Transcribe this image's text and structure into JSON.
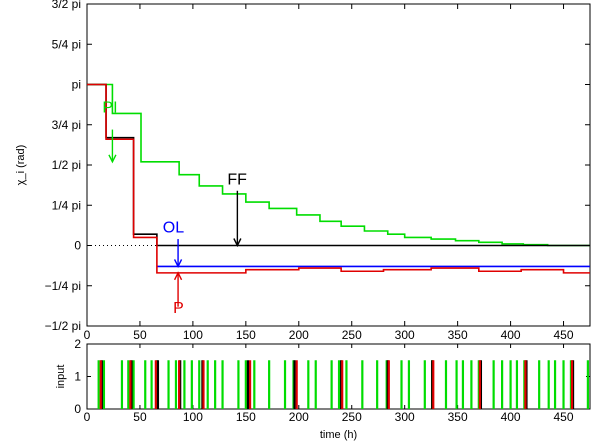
{
  "chart_data": [
    {
      "type": "line",
      "ylabel": "χ_i (rad)",
      "xlim": [
        0,
        475
      ],
      "ylim": [
        -0.5,
        1.5
      ],
      "y_unit": "pi rad",
      "y_ticks": [
        -0.5,
        -0.25,
        0,
        0.25,
        0.5,
        0.75,
        1.0,
        1.25,
        1.5
      ],
      "y_ticklabels": [
        "−1/2 pi",
        "−1/4 pi",
        "0",
        "1/4 pi",
        "1/2 pi",
        "3/4 pi",
        "pi",
        "5/4 pi",
        "3/2 pi"
      ],
      "x_ticks": [
        0,
        50,
        100,
        150,
        200,
        250,
        300,
        350,
        400,
        450
      ],
      "x_ticklabels": [
        "0",
        "50",
        "100",
        "150",
        "200",
        "250",
        "300",
        "350",
        "400",
        "450"
      ],
      "grid": false,
      "series": [
        {
          "name": "PI",
          "color": "#00dd00",
          "step": true,
          "x": [
            0,
            12,
            24,
            41,
            51,
            65,
            87,
            106,
            128,
            150,
            172,
            198,
            220,
            240,
            262,
            284,
            300,
            325,
            348,
            370,
            392,
            412,
            435,
            475
          ],
          "y": [
            1.0,
            1.0,
            0.82,
            0.82,
            0.52,
            0.52,
            0.44,
            0.37,
            0.32,
            0.27,
            0.23,
            0.19,
            0.15,
            0.12,
            0.09,
            0.07,
            0.05,
            0.04,
            0.03,
            0.02,
            0.01,
            0.005,
            0.0,
            0.0
          ]
        },
        {
          "name": "FF",
          "color": "#000000",
          "step": true,
          "x": [
            0,
            12,
            18,
            40,
            44,
            65,
            66,
            475
          ],
          "y": [
            1.0,
            1.0,
            0.67,
            0.67,
            0.07,
            0.07,
            0.0,
            0.0
          ]
        },
        {
          "name": "OL",
          "color": "#0000ff",
          "step": true,
          "x": [
            66,
            475
          ],
          "y": [
            -0.13,
            -0.13
          ],
          "pre_segment": {
            "x": [
              0,
              66
            ],
            "y": [
              0,
              0
            ],
            "style": "dotted",
            "color": "#000000"
          }
        },
        {
          "name": "P",
          "color": "#e00000",
          "step": true,
          "x": [
            0,
            12,
            18,
            40,
            44,
            65,
            66,
            150,
            200,
            240,
            280,
            325,
            370,
            410,
            450,
            475
          ],
          "y": [
            1.0,
            1.0,
            0.66,
            0.66,
            0.05,
            0.05,
            -0.17,
            -0.15,
            -0.14,
            -0.16,
            -0.15,
            -0.14,
            -0.16,
            -0.15,
            -0.17,
            -0.17
          ]
        }
      ],
      "annotations": [
        {
          "text": "PI",
          "color": "#00dd00",
          "x": 24,
          "y": 0.8
        },
        {
          "text": "FF",
          "color": "#000000",
          "x": 142,
          "y": 0.38
        },
        {
          "text": "OL",
          "color": "#0000ff",
          "x": 81,
          "y": 0.08
        },
        {
          "text": "P",
          "color": "#e00000",
          "x": 86,
          "y": -0.42
        }
      ]
    },
    {
      "type": "bar",
      "xlabel": "time (h)",
      "ylabel": "input",
      "xlim": [
        0,
        475
      ],
      "ylim": [
        0,
        2
      ],
      "y_ticks": [
        0,
        1,
        2
      ],
      "y_ticklabels": [
        "0",
        "1",
        "2"
      ],
      "x_ticks": [
        0,
        50,
        100,
        150,
        200,
        250,
        300,
        350,
        400,
        450
      ],
      "x_ticklabels": [
        "0",
        "50",
        "100",
        "150",
        "200",
        "250",
        "300",
        "350",
        "400",
        "450"
      ],
      "series": [
        {
          "name": "green",
          "color": "#00dd00",
          "value": 1.5,
          "x": [
            11,
            16,
            33,
            39,
            44,
            55,
            61,
            66,
            77,
            84,
            92,
            99,
            106,
            114,
            121,
            128,
            143,
            150,
            158,
            172,
            187,
            195,
            209,
            216,
            231,
            238,
            245,
            260,
            274,
            283,
            297,
            304,
            319,
            326,
            339,
            349,
            355,
            363,
            370,
            384,
            392,
            400,
            406,
            413,
            427,
            436,
            442,
            450,
            457,
            473
          ]
        },
        {
          "name": "black",
          "color": "#000000",
          "value": 1.5,
          "x": [
            14,
            42,
            67,
            88,
            109,
            152,
            196,
            240,
            284,
            326,
            372,
            415,
            459
          ]
        },
        {
          "name": "red",
          "color": "#e00000",
          "value": 1.5,
          "x": [
            13,
            41,
            65,
            87,
            110,
            154,
            198,
            241,
            285,
            327,
            371,
            414,
            458
          ]
        }
      ]
    }
  ]
}
